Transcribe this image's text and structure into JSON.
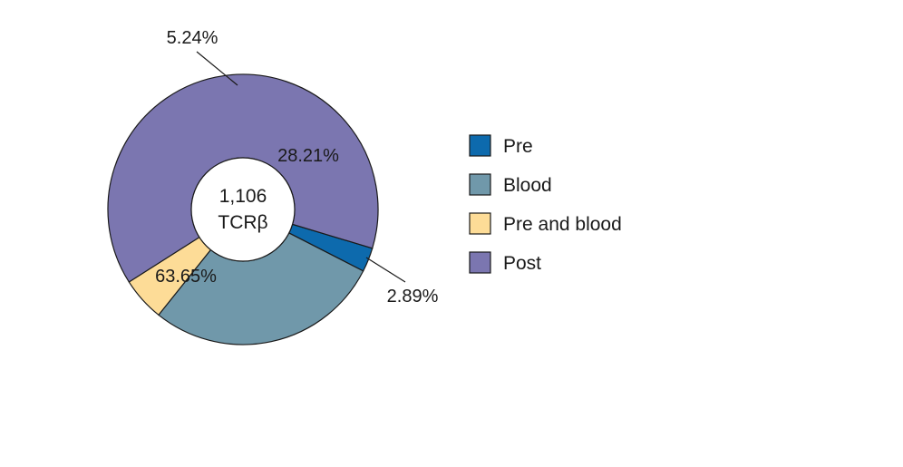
{
  "chart_data": {
    "type": "pie",
    "center_label": [
      "1,106",
      "TCRβ"
    ],
    "slices": [
      {
        "name": "Pre",
        "value": 2.89,
        "label": "2.89%",
        "color": "#0d6aad"
      },
      {
        "name": "Blood",
        "value": 28.21,
        "label": "28.21%",
        "color": "#7098aa"
      },
      {
        "name": "Pre and blood",
        "value": 5.24,
        "label": "5.24%",
        "color": "#fddc97"
      },
      {
        "name": "Post",
        "value": 63.65,
        "label": "63.65%",
        "color": "#7b76b0"
      }
    ],
    "legend_position": "right"
  }
}
